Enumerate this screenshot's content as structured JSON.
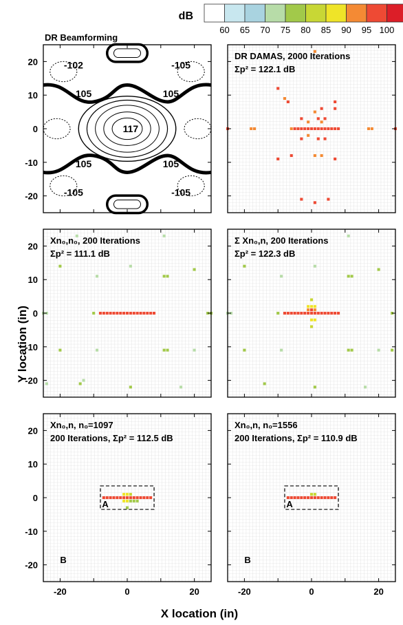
{
  "figure": {
    "colorbar_label": "dB",
    "colorbar_ticks": [
      "60",
      "65",
      "70",
      "75",
      "80",
      "85",
      "90",
      "95",
      "100"
    ],
    "colorbar_colors": [
      "#ffffff",
      "#c8e7ef",
      "#a9d3e0",
      "#b7dca8",
      "#a2c94a",
      "#c8d735",
      "#efe428",
      "#f48a34",
      "#ee4a34",
      "#dc1e28"
    ],
    "xlabel": "X location (in)",
    "ylabel": "Y location (in)",
    "x_ticks": [
      "-20",
      "0",
      "20"
    ],
    "y_ticks": [
      "20",
      "10",
      "0",
      "-10",
      "-20"
    ]
  },
  "chart_data": [
    {
      "type": "contour",
      "title": "DR Beamforming",
      "xlim": [
        -25,
        25
      ],
      "ylim": [
        -25,
        25
      ],
      "contour_labels": [
        {
          "x": -16,
          "y": 19,
          "text": "-102"
        },
        {
          "x": 16,
          "y": 19,
          "text": "-105"
        },
        {
          "x": -13,
          "y": 10.5,
          "text": "105"
        },
        {
          "x": 13,
          "y": 10.5,
          "text": "105"
        },
        {
          "x": 1,
          "y": 0,
          "text": "117"
        },
        {
          "x": -13,
          "y": -10.5,
          "text": "105"
        },
        {
          "x": 13,
          "y": -10.5,
          "text": "105"
        },
        {
          "x": -16,
          "y": -19,
          "text": "-105"
        },
        {
          "x": 16,
          "y": -19,
          "text": "-105"
        }
      ]
    },
    {
      "type": "heatmap",
      "title": "DR DAMAS, 2000 Iterations",
      "sum_label": "Σp² = 122.1 dB",
      "xlim": [
        -25,
        25
      ],
      "ylim": [
        -25,
        25
      ],
      "cells": [
        {
          "x": -25,
          "y": 0,
          "db": 95
        },
        {
          "x": -18,
          "y": 0,
          "db": 92
        },
        {
          "x": -17,
          "y": 0,
          "db": 92
        },
        {
          "x": 17,
          "y": 0,
          "db": 92
        },
        {
          "x": 18,
          "y": 0,
          "db": 92
        },
        {
          "x": 25,
          "y": 0,
          "db": 95
        },
        {
          "x": -4,
          "y": 0,
          "db": 98
        },
        {
          "x": -3,
          "y": 0,
          "db": 98
        },
        {
          "x": -2,
          "y": 0,
          "db": 98
        },
        {
          "x": -1,
          "y": 0,
          "db": 98
        },
        {
          "x": 0,
          "y": 0,
          "db": 98
        },
        {
          "x": 1,
          "y": 0,
          "db": 98
        },
        {
          "x": 2,
          "y": 0,
          "db": 98
        },
        {
          "x": 3,
          "y": 0,
          "db": 98
        },
        {
          "x": 4,
          "y": 0,
          "db": 98
        },
        {
          "x": 5,
          "y": 0,
          "db": 98
        },
        {
          "x": 6,
          "y": 0,
          "db": 98
        },
        {
          "x": 7,
          "y": 0,
          "db": 98
        },
        {
          "x": 8,
          "y": 0,
          "db": 98
        },
        {
          "x": -6,
          "y": 0,
          "db": 93
        },
        {
          "x": -5,
          "y": 0,
          "db": 95
        },
        {
          "x": 1,
          "y": 23,
          "db": 92
        },
        {
          "x": -10,
          "y": 12,
          "db": 97
        },
        {
          "x": -7,
          "y": 8,
          "db": 96
        },
        {
          "x": -8,
          "y": 9,
          "db": 92
        },
        {
          "x": 3,
          "y": 6,
          "db": 95
        },
        {
          "x": 1,
          "y": 5,
          "db": 92
        },
        {
          "x": 7,
          "y": 8,
          "db": 96
        },
        {
          "x": 7,
          "y": 6,
          "db": 96
        },
        {
          "x": -3,
          "y": 3,
          "db": 96
        },
        {
          "x": -1,
          "y": 2,
          "db": 92
        },
        {
          "x": 2,
          "y": 3,
          "db": 96
        },
        {
          "x": 4,
          "y": 3,
          "db": 96
        },
        {
          "x": 3,
          "y": 2,
          "db": 93
        },
        {
          "x": -3,
          "y": -3,
          "db": 96
        },
        {
          "x": -1,
          "y": -2,
          "db": 92
        },
        {
          "x": 2,
          "y": -3,
          "db": 96
        },
        {
          "x": 4,
          "y": -3,
          "db": 96
        },
        {
          "x": -6,
          "y": -8,
          "db": 95
        },
        {
          "x": -10,
          "y": -9,
          "db": 96
        },
        {
          "x": 1,
          "y": -8,
          "db": 92
        },
        {
          "x": 3,
          "y": -8,
          "db": 92
        },
        {
          "x": 7,
          "y": -9,
          "db": 96
        },
        {
          "x": -3,
          "y": -21,
          "db": 96
        },
        {
          "x": 1,
          "y": -22,
          "db": 96
        },
        {
          "x": 5,
          "y": -21,
          "db": 96
        }
      ]
    },
    {
      "type": "heatmap",
      "title": "Xn₀,n₀, 200 Iterations",
      "sum_label": "Σp² = 111.1 dB",
      "xlim": [
        -25,
        25
      ],
      "ylim": [
        -25,
        25
      ],
      "cells": [
        {
          "x": -8,
          "y": 0,
          "db": 97
        },
        {
          "x": -7,
          "y": 0,
          "db": 97
        },
        {
          "x": -6,
          "y": 0,
          "db": 97
        },
        {
          "x": -5,
          "y": 0,
          "db": 97
        },
        {
          "x": -4,
          "y": 0,
          "db": 97
        },
        {
          "x": -3,
          "y": 0,
          "db": 97
        },
        {
          "x": -2,
          "y": 0,
          "db": 97
        },
        {
          "x": -1,
          "y": 0,
          "db": 97
        },
        {
          "x": 0,
          "y": 0,
          "db": 97
        },
        {
          "x": 1,
          "y": 0,
          "db": 97
        },
        {
          "x": 2,
          "y": 0,
          "db": 97
        },
        {
          "x": 3,
          "y": 0,
          "db": 97
        },
        {
          "x": 4,
          "y": 0,
          "db": 97
        },
        {
          "x": 5,
          "y": 0,
          "db": 97
        },
        {
          "x": 6,
          "y": 0,
          "db": 97
        },
        {
          "x": 7,
          "y": 0,
          "db": 97
        },
        {
          "x": 8,
          "y": 0,
          "db": 97
        },
        {
          "x": -25,
          "y": 0,
          "db": 72
        },
        {
          "x": -24,
          "y": 0,
          "db": 72
        },
        {
          "x": -10,
          "y": 0,
          "db": 78
        },
        {
          "x": 24,
          "y": 0,
          "db": 78
        },
        {
          "x": 25,
          "y": 0,
          "db": 78
        },
        {
          "x": -20,
          "y": 14,
          "db": 78
        },
        {
          "x": -15,
          "y": 23,
          "db": 73
        },
        {
          "x": -9,
          "y": 11,
          "db": 73
        },
        {
          "x": 1,
          "y": 14,
          "db": 73
        },
        {
          "x": 11,
          "y": 23,
          "db": 73
        },
        {
          "x": 11,
          "y": 11,
          "db": 78
        },
        {
          "x": 12,
          "y": 11,
          "db": 78
        },
        {
          "x": 20,
          "y": 13,
          "db": 78
        },
        {
          "x": -20,
          "y": -11,
          "db": 78
        },
        {
          "x": -9,
          "y": -11,
          "db": 73
        },
        {
          "x": -14,
          "y": -21,
          "db": 78
        },
        {
          "x": -13,
          "y": -20,
          "db": 73
        },
        {
          "x": -24,
          "y": -21,
          "db": 73
        },
        {
          "x": 1,
          "y": -22,
          "db": 78
        },
        {
          "x": 11,
          "y": -11,
          "db": 78
        },
        {
          "x": 12,
          "y": -11,
          "db": 78
        },
        {
          "x": 20,
          "y": -11,
          "db": 73
        },
        {
          "x": 16,
          "y": -22,
          "db": 73
        }
      ]
    },
    {
      "type": "heatmap",
      "title": "Σ Xn₀,n, 200 Iterations",
      "sum_label": "Σp² = 122.3 dB",
      "xlim": [
        -25,
        25
      ],
      "ylim": [
        -25,
        25
      ],
      "cells": [
        {
          "x": -8,
          "y": 0,
          "db": 97
        },
        {
          "x": -7,
          "y": 0,
          "db": 97
        },
        {
          "x": -6,
          "y": 0,
          "db": 97
        },
        {
          "x": -5,
          "y": 0,
          "db": 97
        },
        {
          "x": -4,
          "y": 0,
          "db": 97
        },
        {
          "x": -3,
          "y": 0,
          "db": 97
        },
        {
          "x": -2,
          "y": 0,
          "db": 97
        },
        {
          "x": -1,
          "y": 0,
          "db": 97
        },
        {
          "x": 0,
          "y": 0,
          "db": 97
        },
        {
          "x": 1,
          "y": 0,
          "db": 97
        },
        {
          "x": 2,
          "y": 0,
          "db": 97
        },
        {
          "x": 3,
          "y": 0,
          "db": 97
        },
        {
          "x": 4,
          "y": 0,
          "db": 97
        },
        {
          "x": 5,
          "y": 0,
          "db": 97
        },
        {
          "x": 6,
          "y": 0,
          "db": 97
        },
        {
          "x": 7,
          "y": 0,
          "db": 97
        },
        {
          "x": 8,
          "y": 0,
          "db": 97
        },
        {
          "x": -1,
          "y": 1,
          "db": 93
        },
        {
          "x": 0,
          "y": 1,
          "db": 97
        },
        {
          "x": 1,
          "y": 1,
          "db": 93
        },
        {
          "x": -1,
          "y": 2,
          "db": 85
        },
        {
          "x": 0,
          "y": 2,
          "db": 88
        },
        {
          "x": 1,
          "y": 2,
          "db": 85
        },
        {
          "x": 0,
          "y": 4,
          "db": 82
        },
        {
          "x": 0,
          "y": -2,
          "db": 86
        },
        {
          "x": 1,
          "y": -2,
          "db": 86
        },
        {
          "x": 0,
          "y": -4,
          "db": 80
        },
        {
          "x": -25,
          "y": 0,
          "db": 72
        },
        {
          "x": -24,
          "y": 0,
          "db": 72
        },
        {
          "x": -10,
          "y": 0,
          "db": 78
        },
        {
          "x": 24,
          "y": 0,
          "db": 78
        },
        {
          "x": -20,
          "y": 14,
          "db": 78
        },
        {
          "x": -9,
          "y": 11,
          "db": 73
        },
        {
          "x": 1,
          "y": 14,
          "db": 73
        },
        {
          "x": 11,
          "y": 11,
          "db": 78
        },
        {
          "x": 12,
          "y": 11,
          "db": 78
        },
        {
          "x": 20,
          "y": 13,
          "db": 78
        },
        {
          "x": 11,
          "y": 23,
          "db": 73
        },
        {
          "x": -20,
          "y": -11,
          "db": 78
        },
        {
          "x": -9,
          "y": -11,
          "db": 73
        },
        {
          "x": -14,
          "y": -21,
          "db": 78
        },
        {
          "x": 1,
          "y": -22,
          "db": 78
        },
        {
          "x": 11,
          "y": -11,
          "db": 78
        },
        {
          "x": 12,
          "y": -11,
          "db": 78
        },
        {
          "x": 20,
          "y": -11,
          "db": 73
        },
        {
          "x": 24,
          "y": -11,
          "db": 78
        },
        {
          "x": 16,
          "y": -22,
          "db": 73
        }
      ]
    },
    {
      "type": "heatmap",
      "title": "Xn₀,n,   n₀=1097",
      "sum_label": "200 Iterations, Σp² = 112.5 dB",
      "label_a": "A",
      "label_b": "B",
      "box": {
        "x0": -8,
        "x1": 8,
        "y0": -3.5,
        "y1": 3.5
      },
      "xlim": [
        -25,
        25
      ],
      "ylim": [
        -25,
        25
      ],
      "cells": [
        {
          "x": -7,
          "y": 0,
          "db": 97
        },
        {
          "x": -6,
          "y": 0,
          "db": 97
        },
        {
          "x": -5,
          "y": 0,
          "db": 97
        },
        {
          "x": -4,
          "y": 0,
          "db": 97
        },
        {
          "x": -3,
          "y": 0,
          "db": 97
        },
        {
          "x": -2,
          "y": 0,
          "db": 97
        },
        {
          "x": -1,
          "y": 0,
          "db": 97
        },
        {
          "x": 0,
          "y": 0,
          "db": 97
        },
        {
          "x": 1,
          "y": 0,
          "db": 97
        },
        {
          "x": 2,
          "y": 0,
          "db": 97
        },
        {
          "x": 3,
          "y": 0,
          "db": 97
        },
        {
          "x": 4,
          "y": 0,
          "db": 97
        },
        {
          "x": 5,
          "y": 0,
          "db": 97
        },
        {
          "x": 6,
          "y": 0,
          "db": 97
        },
        {
          "x": 7,
          "y": 0,
          "db": 97
        },
        {
          "x": -1,
          "y": 1,
          "db": 88
        },
        {
          "x": 0,
          "y": 1,
          "db": 88
        },
        {
          "x": 1,
          "y": 1,
          "db": 82
        },
        {
          "x": -1,
          "y": -1,
          "db": 86
        },
        {
          "x": 0,
          "y": -1,
          "db": 86
        },
        {
          "x": 1,
          "y": -1,
          "db": 78
        },
        {
          "x": 2,
          "y": -1,
          "db": 78
        },
        {
          "x": 3,
          "y": -1,
          "db": 78
        },
        {
          "x": 0,
          "y": -3,
          "db": 78
        }
      ]
    },
    {
      "type": "heatmap",
      "title": "Xn₀,n,    n₀=1556",
      "sum_label": "200 Iterations, Σp² = 110.9 dB",
      "label_a": "A",
      "label_b": "B",
      "box": {
        "x0": -8,
        "x1": 8,
        "y0": -3.5,
        "y1": 3.5
      },
      "xlim": [
        -25,
        25
      ],
      "ylim": [
        -25,
        25
      ],
      "cells": [
        {
          "x": -7,
          "y": 0,
          "db": 97
        },
        {
          "x": -6,
          "y": 0,
          "db": 97
        },
        {
          "x": -5,
          "y": 0,
          "db": 97
        },
        {
          "x": -4,
          "y": 0,
          "db": 97
        },
        {
          "x": -3,
          "y": 0,
          "db": 97
        },
        {
          "x": -2,
          "y": 0,
          "db": 97
        },
        {
          "x": -1,
          "y": 0,
          "db": 97
        },
        {
          "x": 0,
          "y": 0,
          "db": 97
        },
        {
          "x": 1,
          "y": 0,
          "db": 97
        },
        {
          "x": 2,
          "y": 0,
          "db": 97
        },
        {
          "x": 3,
          "y": 0,
          "db": 97
        },
        {
          "x": 4,
          "y": 0,
          "db": 97
        },
        {
          "x": 5,
          "y": 0,
          "db": 97
        },
        {
          "x": 6,
          "y": 0,
          "db": 97
        },
        {
          "x": 7,
          "y": 0,
          "db": 97
        },
        {
          "x": 0,
          "y": 1,
          "db": 80
        },
        {
          "x": 1,
          "y": 1,
          "db": 80
        }
      ]
    }
  ]
}
